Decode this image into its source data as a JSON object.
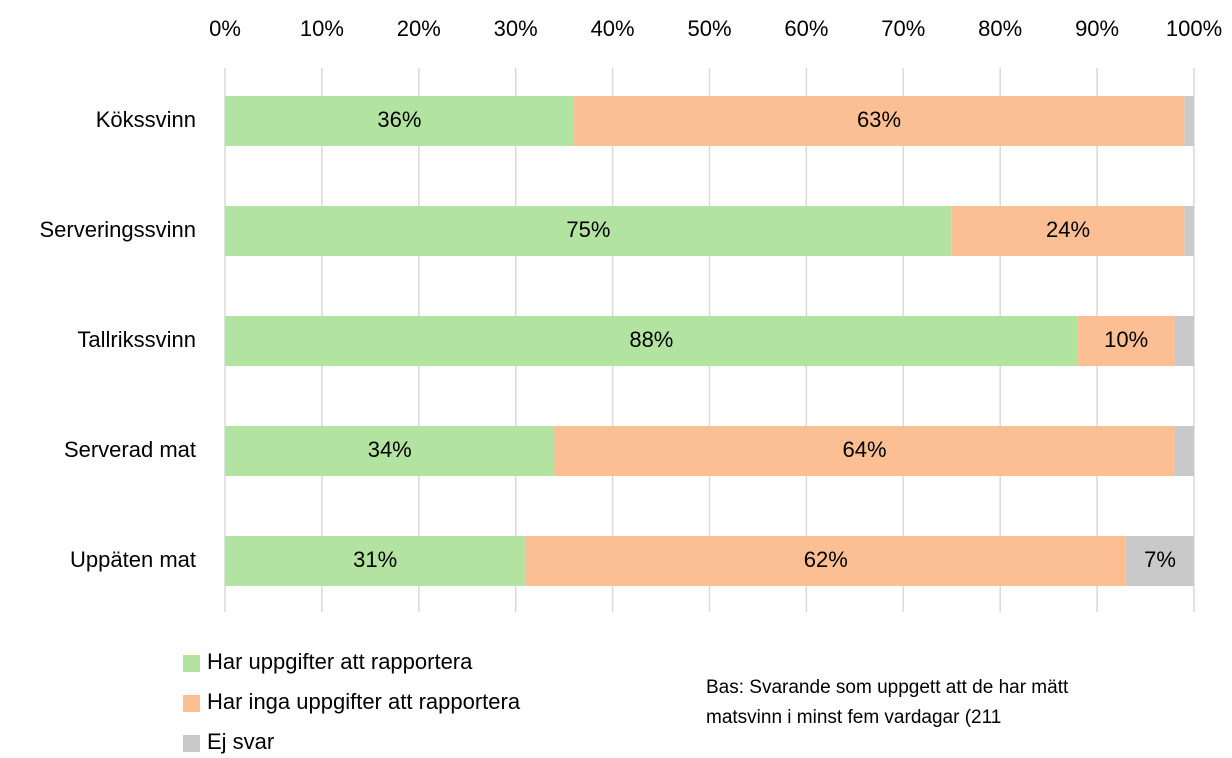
{
  "chart_data": {
    "type": "stacked_bar_horizontal",
    "categories": [
      "Kökssvinn",
      "Serveringssvinn",
      "Tallrikssvinn",
      "Serverad mat",
      "Uppäten mat"
    ],
    "series": [
      {
        "name": "Har uppgifter att rapportera",
        "color": "#b3e3a0",
        "values": [
          36,
          75,
          88,
          34,
          31
        ],
        "value_labels": [
          "36%",
          "75%",
          "88%",
          "34%",
          "31%"
        ]
      },
      {
        "name": "Har inga uppgifter att rapportera",
        "color": "#fcbf94",
        "values": [
          63,
          24,
          10,
          64,
          62
        ],
        "value_labels": [
          "63%",
          "24%",
          "10%",
          "64%",
          "62%"
        ]
      },
      {
        "name": "Ej svar",
        "color": "#c9c9c9",
        "values": [
          1,
          1,
          2,
          2,
          7
        ],
        "value_labels": [
          null,
          null,
          null,
          null,
          "7%"
        ]
      }
    ],
    "xlim": [
      0,
      100
    ],
    "xticks": [
      {
        "value": 0,
        "label": "0%"
      },
      {
        "value": 10,
        "label": "10%"
      },
      {
        "value": 20,
        "label": "20%"
      },
      {
        "value": 30,
        "label": "30%"
      },
      {
        "value": 40,
        "label": "40%"
      },
      {
        "value": 50,
        "label": "50%"
      },
      {
        "value": 60,
        "label": "60%"
      },
      {
        "value": 70,
        "label": "70%"
      },
      {
        "value": 80,
        "label": "80%"
      },
      {
        "value": 90,
        "label": "90%"
      },
      {
        "value": 100,
        "label": "100%"
      }
    ],
    "grid": true,
    "note": [
      "Bas: Svarande som uppgett att de har mätt",
      "matsvinn i minst fem vardagar (211"
    ]
  }
}
